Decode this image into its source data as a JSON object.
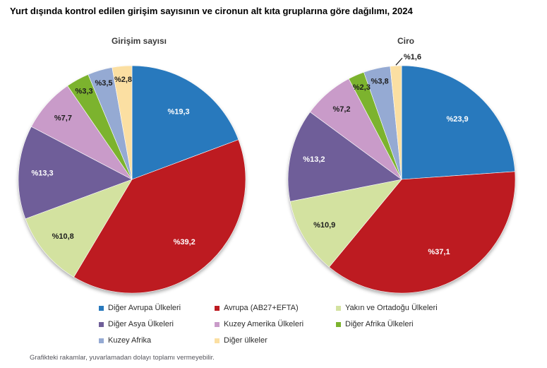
{
  "title": "Yurt dışında kontrol edilen girişim sayısının ve cironun alt kıta gruplarına göre dağılımı, 2024",
  "footnote": "Grafikteki rakamlar, yuvarlamadan dolayı toplamı vermeyebilir.",
  "legend": {
    "position": "bottom",
    "items": [
      {
        "label": "Diğer Avrupa Ülkeleri",
        "color": "#2879BD"
      },
      {
        "label": "Avrupa (AB27+EFTA)",
        "color": "#BD1B21"
      },
      {
        "label": "Yakın ve Ortadoğu Ülkeleri",
        "color": "#D3E2A0"
      },
      {
        "label": "Diğer Asya Ülkeleri",
        "color": "#6F5E99"
      },
      {
        "label": "Kuzey Amerika Ülkeleri",
        "color": "#C99BC9"
      },
      {
        "label": "Diğer Afrika Ülkeleri",
        "color": "#7CB32E"
      },
      {
        "label": "Kuzey Afrika",
        "color": "#95AAD3"
      },
      {
        "label": "Diğer ülkeler",
        "color": "#FBDFA2"
      }
    ]
  },
  "chart_data": [
    {
      "type": "pie",
      "title": "Girişim sayısı",
      "categories": [
        "Diğer Avrupa Ülkeleri",
        "Avrupa (AB27+EFTA)",
        "Yakın ve Ortadoğu Ülkeleri",
        "Diğer Asya Ülkeleri",
        "Kuzey Amerika Ülkeleri",
        "Diğer Afrika Ülkeleri",
        "Kuzey Afrika",
        "Diğer ülkeler"
      ],
      "values": [
        19.3,
        39.2,
        10.8,
        13.3,
        7.7,
        3.3,
        3.5,
        2.8
      ],
      "display_values": [
        "%19,3",
        "%39,2",
        "%10,8",
        "%13,3",
        "%7,7",
        "%3,3",
        "%3,5",
        "%2,8"
      ],
      "colors": [
        "#2879BD",
        "#BD1B21",
        "#D3E2A0",
        "#6F5E99",
        "#C99BC9",
        "#7CB32E",
        "#95AAD3",
        "#FBDFA2"
      ],
      "unit": "%",
      "start_angle": "top",
      "direction": "clockwise",
      "legend_position": "bottom"
    },
    {
      "type": "pie",
      "title": "Ciro",
      "categories": [
        "Diğer Avrupa Ülkeleri",
        "Avrupa (AB27+EFTA)",
        "Yakın ve Ortadoğu Ülkeleri",
        "Diğer Asya Ülkeleri",
        "Kuzey Amerika Ülkeleri",
        "Diğer Afrika Ülkeleri",
        "Kuzey Afrika",
        "Diğer ülkeler"
      ],
      "values": [
        23.9,
        37.1,
        10.9,
        13.2,
        7.2,
        2.3,
        3.8,
        1.6
      ],
      "display_values": [
        "%23,9",
        "%37,1",
        "%10,9",
        "%13,2",
        "%7,2",
        "%2,3",
        "%3,8",
        "%1,6"
      ],
      "colors": [
        "#2879BD",
        "#BD1B21",
        "#D3E2A0",
        "#6F5E99",
        "#C99BC9",
        "#7CB32E",
        "#95AAD3",
        "#FBDFA2"
      ],
      "unit": "%",
      "start_angle": "top",
      "direction": "clockwise",
      "legend_position": "bottom"
    }
  ]
}
